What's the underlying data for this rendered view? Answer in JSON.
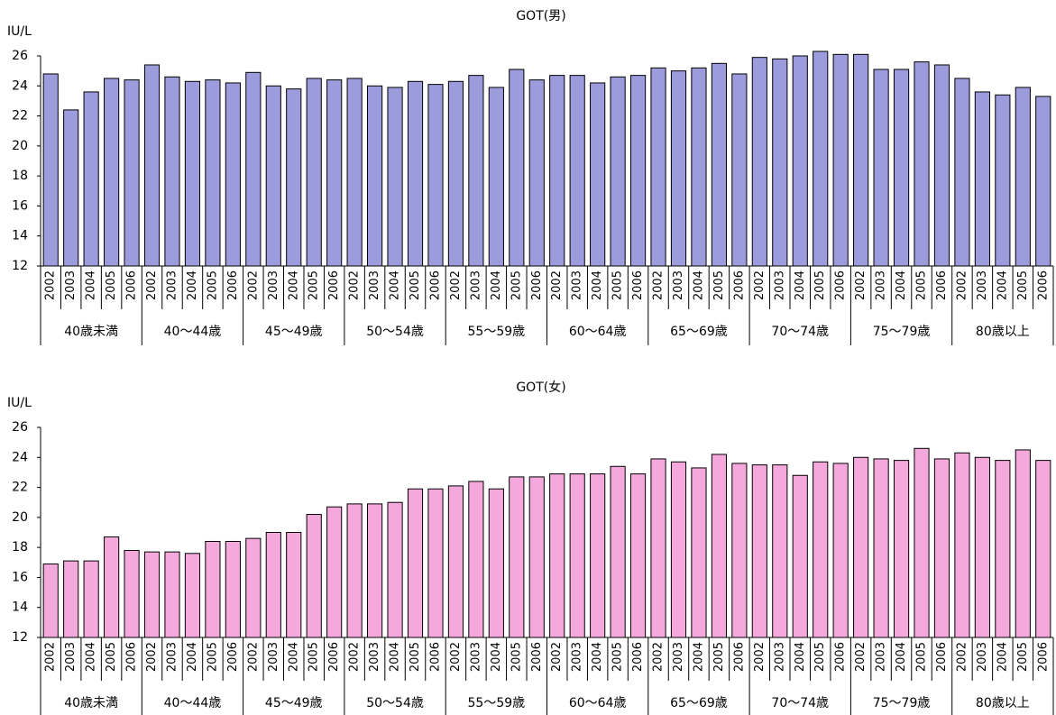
{
  "chart_data": [
    {
      "type": "bar",
      "title": "GOT(男)",
      "y_label": "IU/L",
      "color": "#9c9cdc",
      "categories": [
        "2002",
        "2003",
        "2004",
        "2005",
        "2006",
        "2002",
        "2003",
        "2004",
        "2005",
        "2006",
        "2002",
        "2003",
        "2004",
        "2005",
        "2006",
        "2002",
        "2003",
        "2004",
        "2005",
        "2006",
        "2002",
        "2003",
        "2004",
        "2005",
        "2006",
        "2002",
        "2003",
        "2004",
        "2005",
        "2006",
        "2002",
        "2003",
        "2004",
        "2005",
        "2006",
        "2002",
        "2003",
        "2004",
        "2005",
        "2006",
        "2002",
        "2003",
        "2004",
        "2005",
        "2006",
        "2002",
        "2003",
        "2004",
        "2005",
        "2006"
      ],
      "groups": [
        "40歳未満",
        "40～44歳",
        "45～49歳",
        "50～54歳",
        "55～59歳",
        "60～64歳",
        "65～69歳",
        "70～74歳",
        "75～79歳",
        "80歳以上"
      ],
      "values": [
        24.8,
        22.4,
        23.6,
        24.5,
        24.4,
        25.4,
        24.6,
        24.3,
        24.4,
        24.2,
        24.9,
        24.0,
        23.8,
        24.5,
        24.4,
        24.5,
        24.0,
        23.9,
        24.3,
        24.1,
        24.3,
        24.7,
        23.9,
        25.1,
        24.4,
        24.7,
        24.7,
        24.2,
        24.6,
        24.7,
        25.2,
        25.0,
        25.2,
        25.5,
        24.8,
        25.9,
        25.8,
        26.0,
        26.3,
        26.1,
        26.1,
        25.1,
        25.1,
        25.6,
        25.4,
        24.5,
        23.6,
        23.4,
        23.9,
        23.3
      ],
      "ylim": [
        12,
        26
      ],
      "yticks": [
        12,
        14,
        16,
        18,
        20,
        22,
        24,
        26
      ]
    },
    {
      "type": "bar",
      "title": "GOT(女)",
      "y_label": "IU/L",
      "color": "#f5a8dc",
      "categories": [
        "2002",
        "2003",
        "2004",
        "2005",
        "2006",
        "2002",
        "2003",
        "2004",
        "2005",
        "2006",
        "2002",
        "2003",
        "2004",
        "2005",
        "2006",
        "2002",
        "2003",
        "2004",
        "2005",
        "2006",
        "2002",
        "2003",
        "2004",
        "2005",
        "2006",
        "2002",
        "2003",
        "2004",
        "2005",
        "2006",
        "2002",
        "2003",
        "2004",
        "2005",
        "2006",
        "2002",
        "2003",
        "2004",
        "2005",
        "2006",
        "2002",
        "2003",
        "2004",
        "2005",
        "2006",
        "2002",
        "2003",
        "2004",
        "2005",
        "2006"
      ],
      "groups": [
        "40歳未満",
        "40～44歳",
        "45～49歳",
        "50～54歳",
        "55～59歳",
        "60～64歳",
        "65～69歳",
        "70～74歳",
        "75～79歳",
        "80歳以上"
      ],
      "values": [
        16.9,
        17.1,
        17.1,
        18.7,
        17.8,
        17.7,
        17.7,
        17.6,
        18.4,
        18.4,
        18.6,
        19.0,
        19.0,
        20.2,
        20.7,
        20.9,
        20.9,
        21.0,
        21.9,
        21.9,
        22.1,
        22.4,
        21.9,
        22.7,
        22.7,
        22.9,
        22.9,
        22.9,
        23.4,
        22.9,
        23.9,
        23.7,
        23.3,
        24.2,
        23.6,
        23.5,
        23.5,
        22.8,
        23.7,
        23.6,
        24.0,
        23.9,
        23.8,
        24.6,
        23.9,
        24.3,
        24.0,
        23.8,
        24.5,
        23.8
      ],
      "ylim": [
        12,
        26
      ],
      "yticks": [
        12,
        14,
        16,
        18,
        20,
        22,
        24,
        26
      ]
    }
  ]
}
